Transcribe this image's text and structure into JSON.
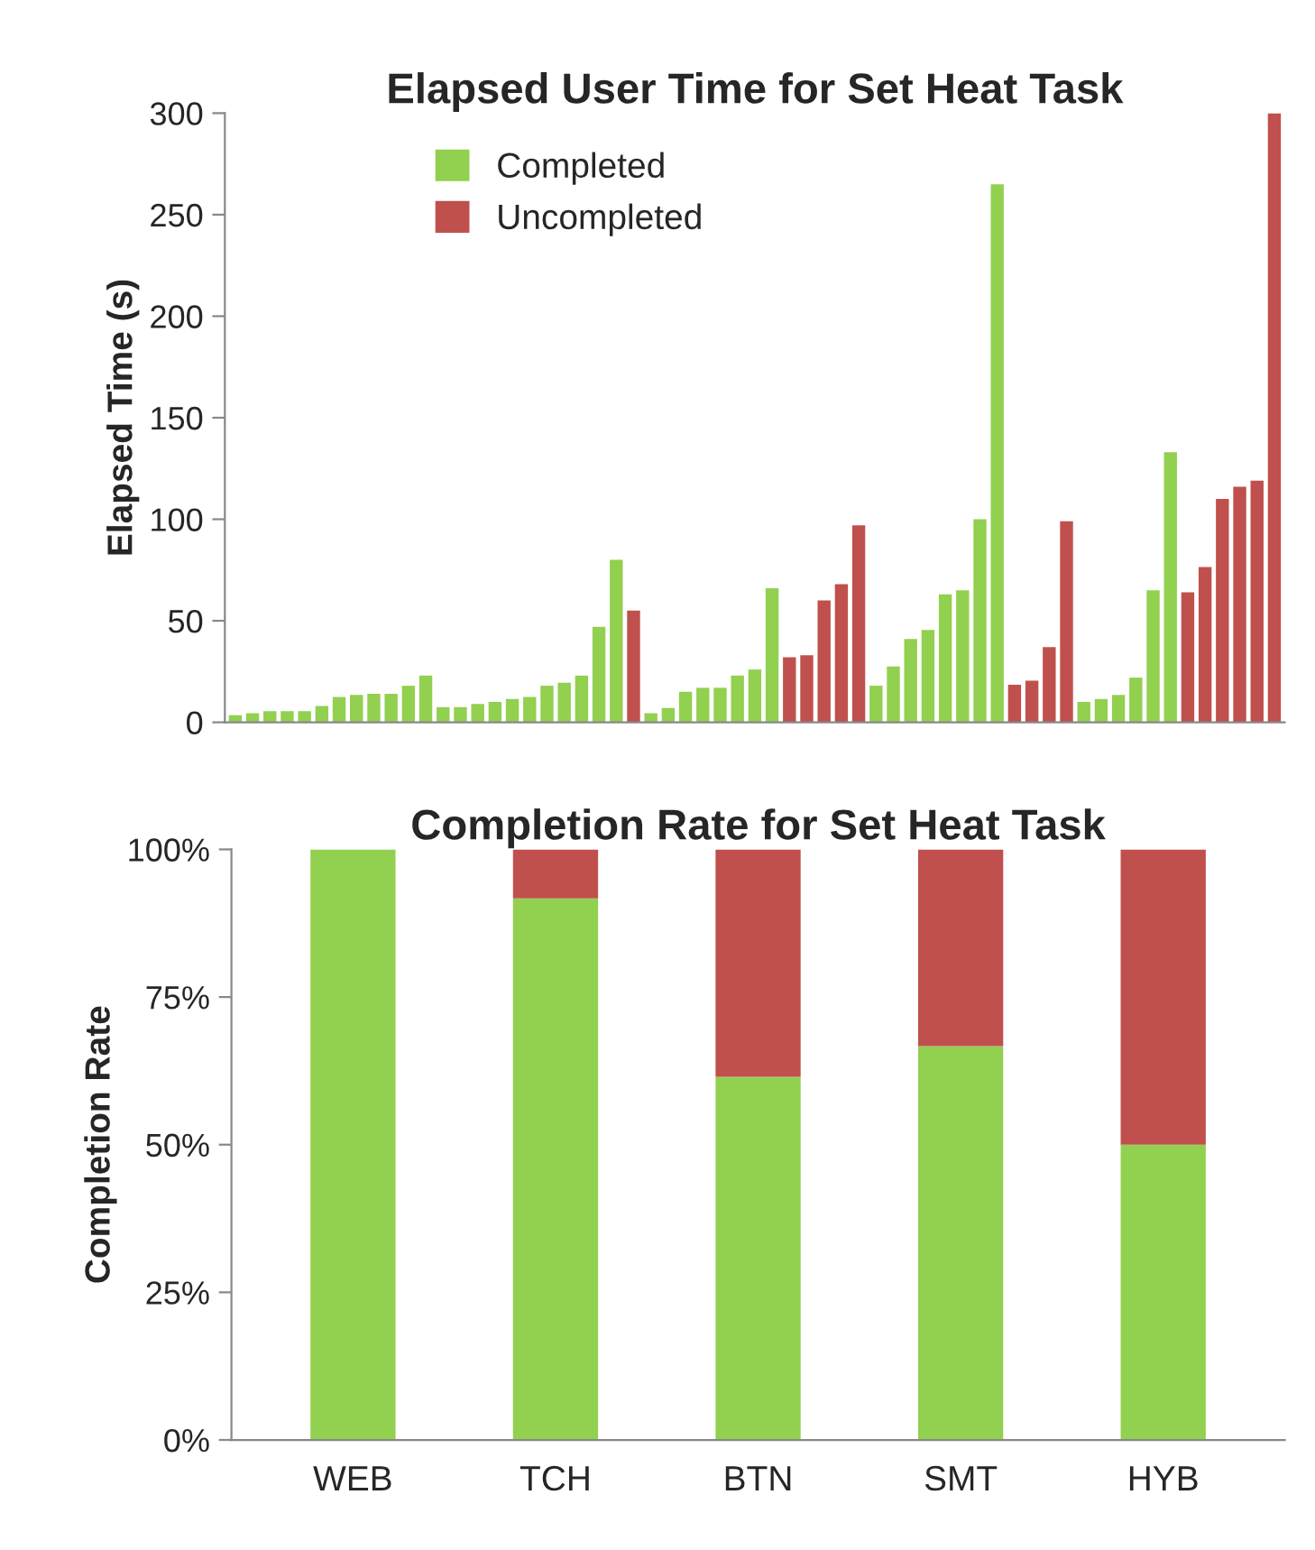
{
  "chart_data": [
    {
      "type": "bar",
      "title": "Elapsed User Time for Set Heat Task",
      "ylabel": "Elapsed Time (s)",
      "categories": [
        null,
        null,
        null,
        null,
        null,
        null,
        null,
        null,
        null,
        null,
        null,
        null,
        null,
        null,
        null,
        null,
        null,
        null,
        null,
        null,
        null,
        null,
        null,
        null,
        null,
        null,
        null,
        null,
        null,
        null,
        null,
        null,
        null,
        null,
        null,
        null,
        null,
        null,
        null,
        null,
        null,
        null,
        null,
        null,
        null,
        null,
        null,
        null,
        null,
        null,
        null,
        null,
        null,
        null,
        null,
        null,
        null,
        null,
        null,
        null,
        null
      ],
      "series": [
        {
          "name": "Completed",
          "color": "#92d050",
          "values": [
            3.5,
            4.5,
            5.5,
            5.5,
            5.5,
            8,
            12.5,
            13.5,
            14,
            14,
            18,
            23,
            7.5,
            7.5,
            9,
            10,
            11.5,
            12.5,
            18,
            19.5,
            23,
            47,
            80,
            null,
            4.5,
            7,
            15,
            17,
            17,
            23,
            26,
            66,
            null,
            null,
            null,
            null,
            null,
            18,
            27.5,
            41,
            45.5,
            63,
            65,
            100,
            265,
            null,
            null,
            null,
            null,
            10,
            11.5,
            13.5,
            22,
            65,
            133,
            null,
            null,
            null,
            null,
            null,
            null
          ]
        },
        {
          "name": "Uncompleted",
          "color": "#c0504d",
          "values": [
            null,
            null,
            null,
            null,
            null,
            null,
            null,
            null,
            null,
            null,
            null,
            null,
            null,
            null,
            null,
            null,
            null,
            null,
            null,
            null,
            null,
            null,
            null,
            55,
            null,
            null,
            null,
            null,
            null,
            null,
            null,
            null,
            32,
            33,
            60,
            68,
            97,
            null,
            null,
            null,
            null,
            null,
            null,
            null,
            null,
            18.5,
            20.5,
            37,
            99,
            null,
            null,
            null,
            null,
            null,
            null,
            64,
            76.5,
            110,
            116,
            119,
            300
          ]
        }
      ],
      "ylim": [
        0,
        300
      ],
      "yticks": [
        0,
        50,
        100,
        150,
        200,
        250,
        300
      ],
      "legend": "top left",
      "grid": false,
      "tick_labels": "y"
    },
    {
      "type": "bar",
      "title": "Completion Rate for Set Heat Task",
      "ylabel": "Completion Rate",
      "stacked": true,
      "categories": [
        "WEB",
        "TCH",
        "BTN",
        "SMT",
        "HYB"
      ],
      "series": [
        {
          "color": "#92d050",
          "values": [
            100,
            91.7,
            61.5,
            66.7,
            50
          ]
        },
        {
          "color": "#c0504d",
          "values": [
            0,
            8.3,
            38.5,
            33.3,
            50
          ]
        }
      ],
      "ylim": [
        0,
        100
      ],
      "yticks": [
        {
          "value": 0,
          "label": "0%"
        },
        {
          "value": 25,
          "label": "25%"
        },
        {
          "value": 50,
          "label": "50%"
        },
        {
          "value": 75,
          "label": "75%"
        },
        {
          "value": 100,
          "label": "100%"
        }
      ],
      "grid": false
    }
  ]
}
